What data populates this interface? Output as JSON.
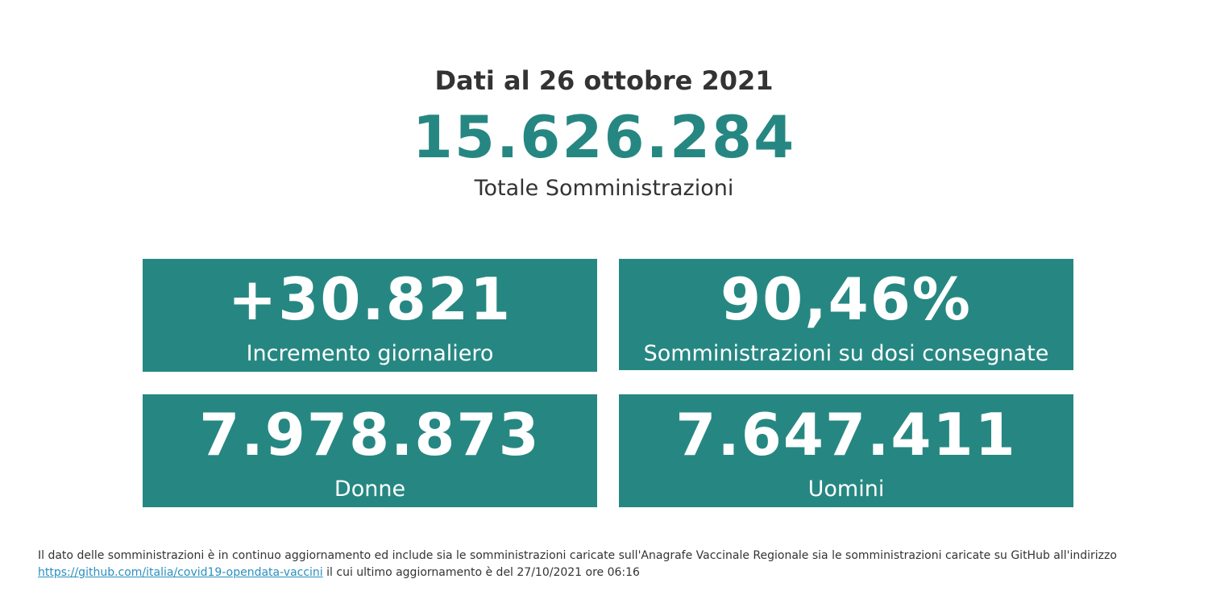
{
  "header": {
    "date_title": "Dati al 26 ottobre 2021",
    "total_value": "15.626.284",
    "total_label": "Totale Somministrazioni"
  },
  "cards": [
    {
      "value": "+30.821",
      "label": "Incremento giornaliero"
    },
    {
      "value": "90,46%",
      "label": "Somministrazioni su dosi consegnate"
    },
    {
      "value": "7.978.873",
      "label": "Donne"
    },
    {
      "value": "7.647.411",
      "label": "Uomini"
    }
  ],
  "footer": {
    "text_before": "Il dato delle somministrazioni è in continuo aggiornamento ed include sia le somministrazioni caricate sull'Anagrafe Vaccinale Regionale sia le somministrazioni caricate su GitHub all'indirizzo",
    "link_text": "https://github.com/italia/covid19-opendata-vaccini",
    "text_after": "il cui ultimo aggiornamento è del 27/10/2021 ore 06:16"
  },
  "colors": {
    "accent": "#268782",
    "text": "#333333",
    "link": "#2a8fbf"
  }
}
